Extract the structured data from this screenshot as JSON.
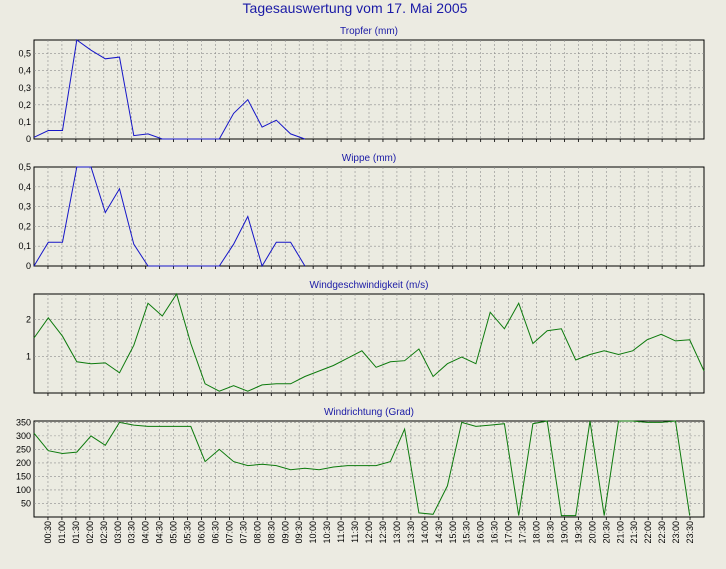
{
  "page_title": "Tagesauswertung vom 17. Mai 2005",
  "colors": {
    "background": "#ecebe2",
    "plot_background": "#ebebe1",
    "title": "#1a1aa6",
    "grid": "#8e8e8e",
    "blue_series": "#1616c8",
    "green_series": "#0d7a0d"
  },
  "x_tick_labels": [
    "00:30",
    "01:00",
    "01:30",
    "02:00",
    "02:30",
    "03:00",
    "03:30",
    "04:00",
    "04:30",
    "05:00",
    "05:30",
    "06:00",
    "06:30",
    "07:00",
    "07:30",
    "08:00",
    "08:30",
    "09:00",
    "09:30",
    "10:00",
    "10:30",
    "11:00",
    "11:30",
    "12:00",
    "12:30",
    "13:00",
    "13:30",
    "14:00",
    "14:30",
    "15:00",
    "15:30",
    "16:00",
    "16:30",
    "17:00",
    "17:30",
    "18:00",
    "18:30",
    "19:00",
    "19:30",
    "20:00",
    "20:30",
    "21:00",
    "21:30",
    "22:00",
    "22:30",
    "23:00",
    "23:30"
  ],
  "chart_data": [
    {
      "type": "line",
      "title": "Tropfer (mm)",
      "grid": true,
      "ylim": [
        0,
        0.58
      ],
      "yticks": [
        0,
        0.1,
        0.2,
        0.3,
        0.4,
        0.5
      ],
      "ytick_labels": [
        "0",
        "0,1",
        "0,2",
        "0,3",
        "0,4",
        "0,5"
      ],
      "color": "blue_series",
      "values": [
        0.01,
        0.05,
        0.05,
        0.58,
        0.52,
        0.47,
        0.48,
        0.02,
        0.03,
        0,
        0,
        0,
        0,
        0,
        0.15,
        0.23,
        0.07,
        0.11,
        0.03,
        0,
        0,
        0,
        0,
        0,
        0,
        0,
        0,
        0,
        0,
        0,
        0,
        0,
        0,
        0,
        0,
        0,
        0,
        0,
        0,
        0,
        0,
        0,
        0,
        0,
        0,
        0,
        0,
        0,
        0
      ],
      "values_end_index": 20
    },
    {
      "type": "line",
      "title": "Wippe (mm)",
      "grid": true,
      "ylim": [
        0,
        0.5
      ],
      "yticks": [
        0,
        0.1,
        0.2,
        0.3,
        0.4,
        0.5
      ],
      "ytick_labels": [
        "0",
        "0,1",
        "0,2",
        "0,3",
        "0,4",
        "0,5"
      ],
      "color": "blue_series",
      "values": [
        0,
        0.12,
        0.12,
        0.5,
        0.5,
        0.27,
        0.39,
        0.11,
        0,
        0,
        0,
        0,
        0,
        0,
        0.11,
        0.25,
        0,
        0.12,
        0.12,
        0
      ],
      "values_end_index": 20
    },
    {
      "type": "line",
      "title": "Windgeschwindigkeit (m/s)",
      "grid": true,
      "ylim": [
        0,
        2.7
      ],
      "yticks": [
        1,
        2
      ],
      "ytick_labels": [
        "1",
        "2"
      ],
      "color": "green_series",
      "values": [
        1.5,
        2.05,
        1.55,
        0.85,
        0.8,
        0.82,
        0.55,
        1.3,
        2.45,
        2.1,
        2.7,
        1.35,
        0.25,
        0.05,
        0.2,
        0.05,
        0.22,
        0.25,
        0.25,
        0.45,
        0.6,
        0.75,
        0.95,
        1.15,
        0.7,
        0.85,
        0.88,
        1.2,
        0.45,
        0.8,
        0.98,
        0.8,
        2.2,
        1.75,
        2.45,
        1.35,
        1.7,
        1.75,
        0.9,
        1.05,
        1.15,
        1.05,
        1.15,
        1.45,
        1.6,
        1.42,
        1.45,
        0.6
      ]
    },
    {
      "type": "line",
      "title": "Windrichtung (Grad)",
      "grid": true,
      "ylim": [
        0,
        355
      ],
      "yticks": [
        50,
        100,
        150,
        200,
        250,
        300,
        350
      ],
      "ytick_labels": [
        "50",
        "100",
        "150",
        "200",
        "250",
        "300",
        "350"
      ],
      "color": "green_series",
      "values": [
        310,
        245,
        235,
        240,
        300,
        265,
        350,
        340,
        335,
        335,
        335,
        335,
        205,
        250,
        205,
        190,
        195,
        190,
        175,
        180,
        175,
        185,
        190,
        190,
        190,
        205,
        325,
        15,
        10,
        115,
        350,
        335,
        340,
        345,
        5,
        345,
        355,
        5,
        5,
        355,
        5,
        355,
        355,
        350,
        350,
        355,
        5
      ]
    }
  ]
}
